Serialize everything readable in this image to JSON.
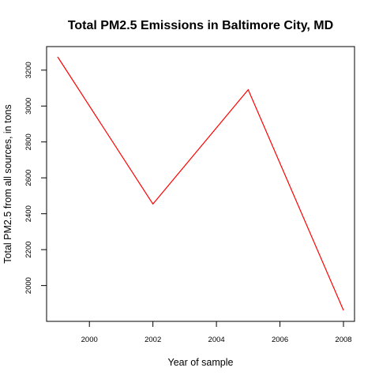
{
  "chart_data": {
    "type": "line",
    "title": "Total PM2.5 Emissions in Baltimore City, MD",
    "xlabel": "Year of sample",
    "ylabel": "Total PM2.5 from all sources, in tons",
    "x": [
      1999,
      2002,
      2005,
      2008
    ],
    "series": [
      {
        "values": [
          3274,
          2454,
          3091,
          1862
        ],
        "color": "#ff0000"
      }
    ],
    "xlim": [
      1999,
      2008
    ],
    "ylim": [
      1862,
      3274
    ],
    "x_ticks": [
      2000,
      2002,
      2004,
      2006,
      2008
    ],
    "x_tick_labels": [
      "2000",
      "2002",
      "2004",
      "2006",
      "2008"
    ],
    "y_ticks": [
      2000,
      2200,
      2400,
      2600,
      2800,
      3000,
      3200
    ],
    "y_tick_labels": [
      "2000",
      "2200",
      "2400",
      "2600",
      "2800",
      "3000",
      "3200"
    ],
    "grid": false,
    "legend": "none"
  }
}
